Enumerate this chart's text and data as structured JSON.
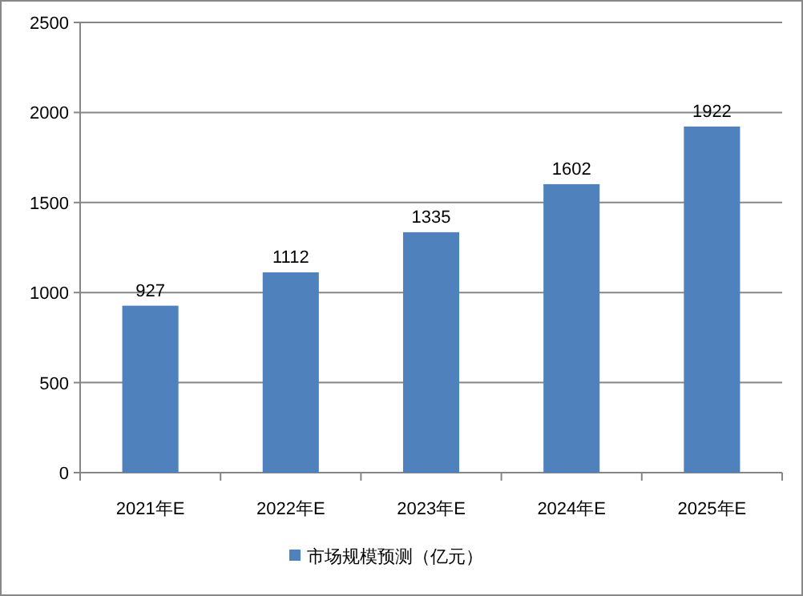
{
  "chart_data": {
    "type": "bar",
    "categories": [
      "2021年E",
      "2022年E",
      "2023年E",
      "2024年E",
      "2025年E"
    ],
    "series": [
      {
        "name": "市场规模预测（亿元）",
        "color": "#4f81bd",
        "values": [
          927,
          1112,
          1335,
          1602,
          1922
        ]
      }
    ],
    "ylim": [
      0,
      2500
    ],
    "yticks": [
      0,
      500,
      1000,
      1500,
      2000,
      2500
    ],
    "grid": "y",
    "legend": "bottom",
    "data_labels": true
  }
}
